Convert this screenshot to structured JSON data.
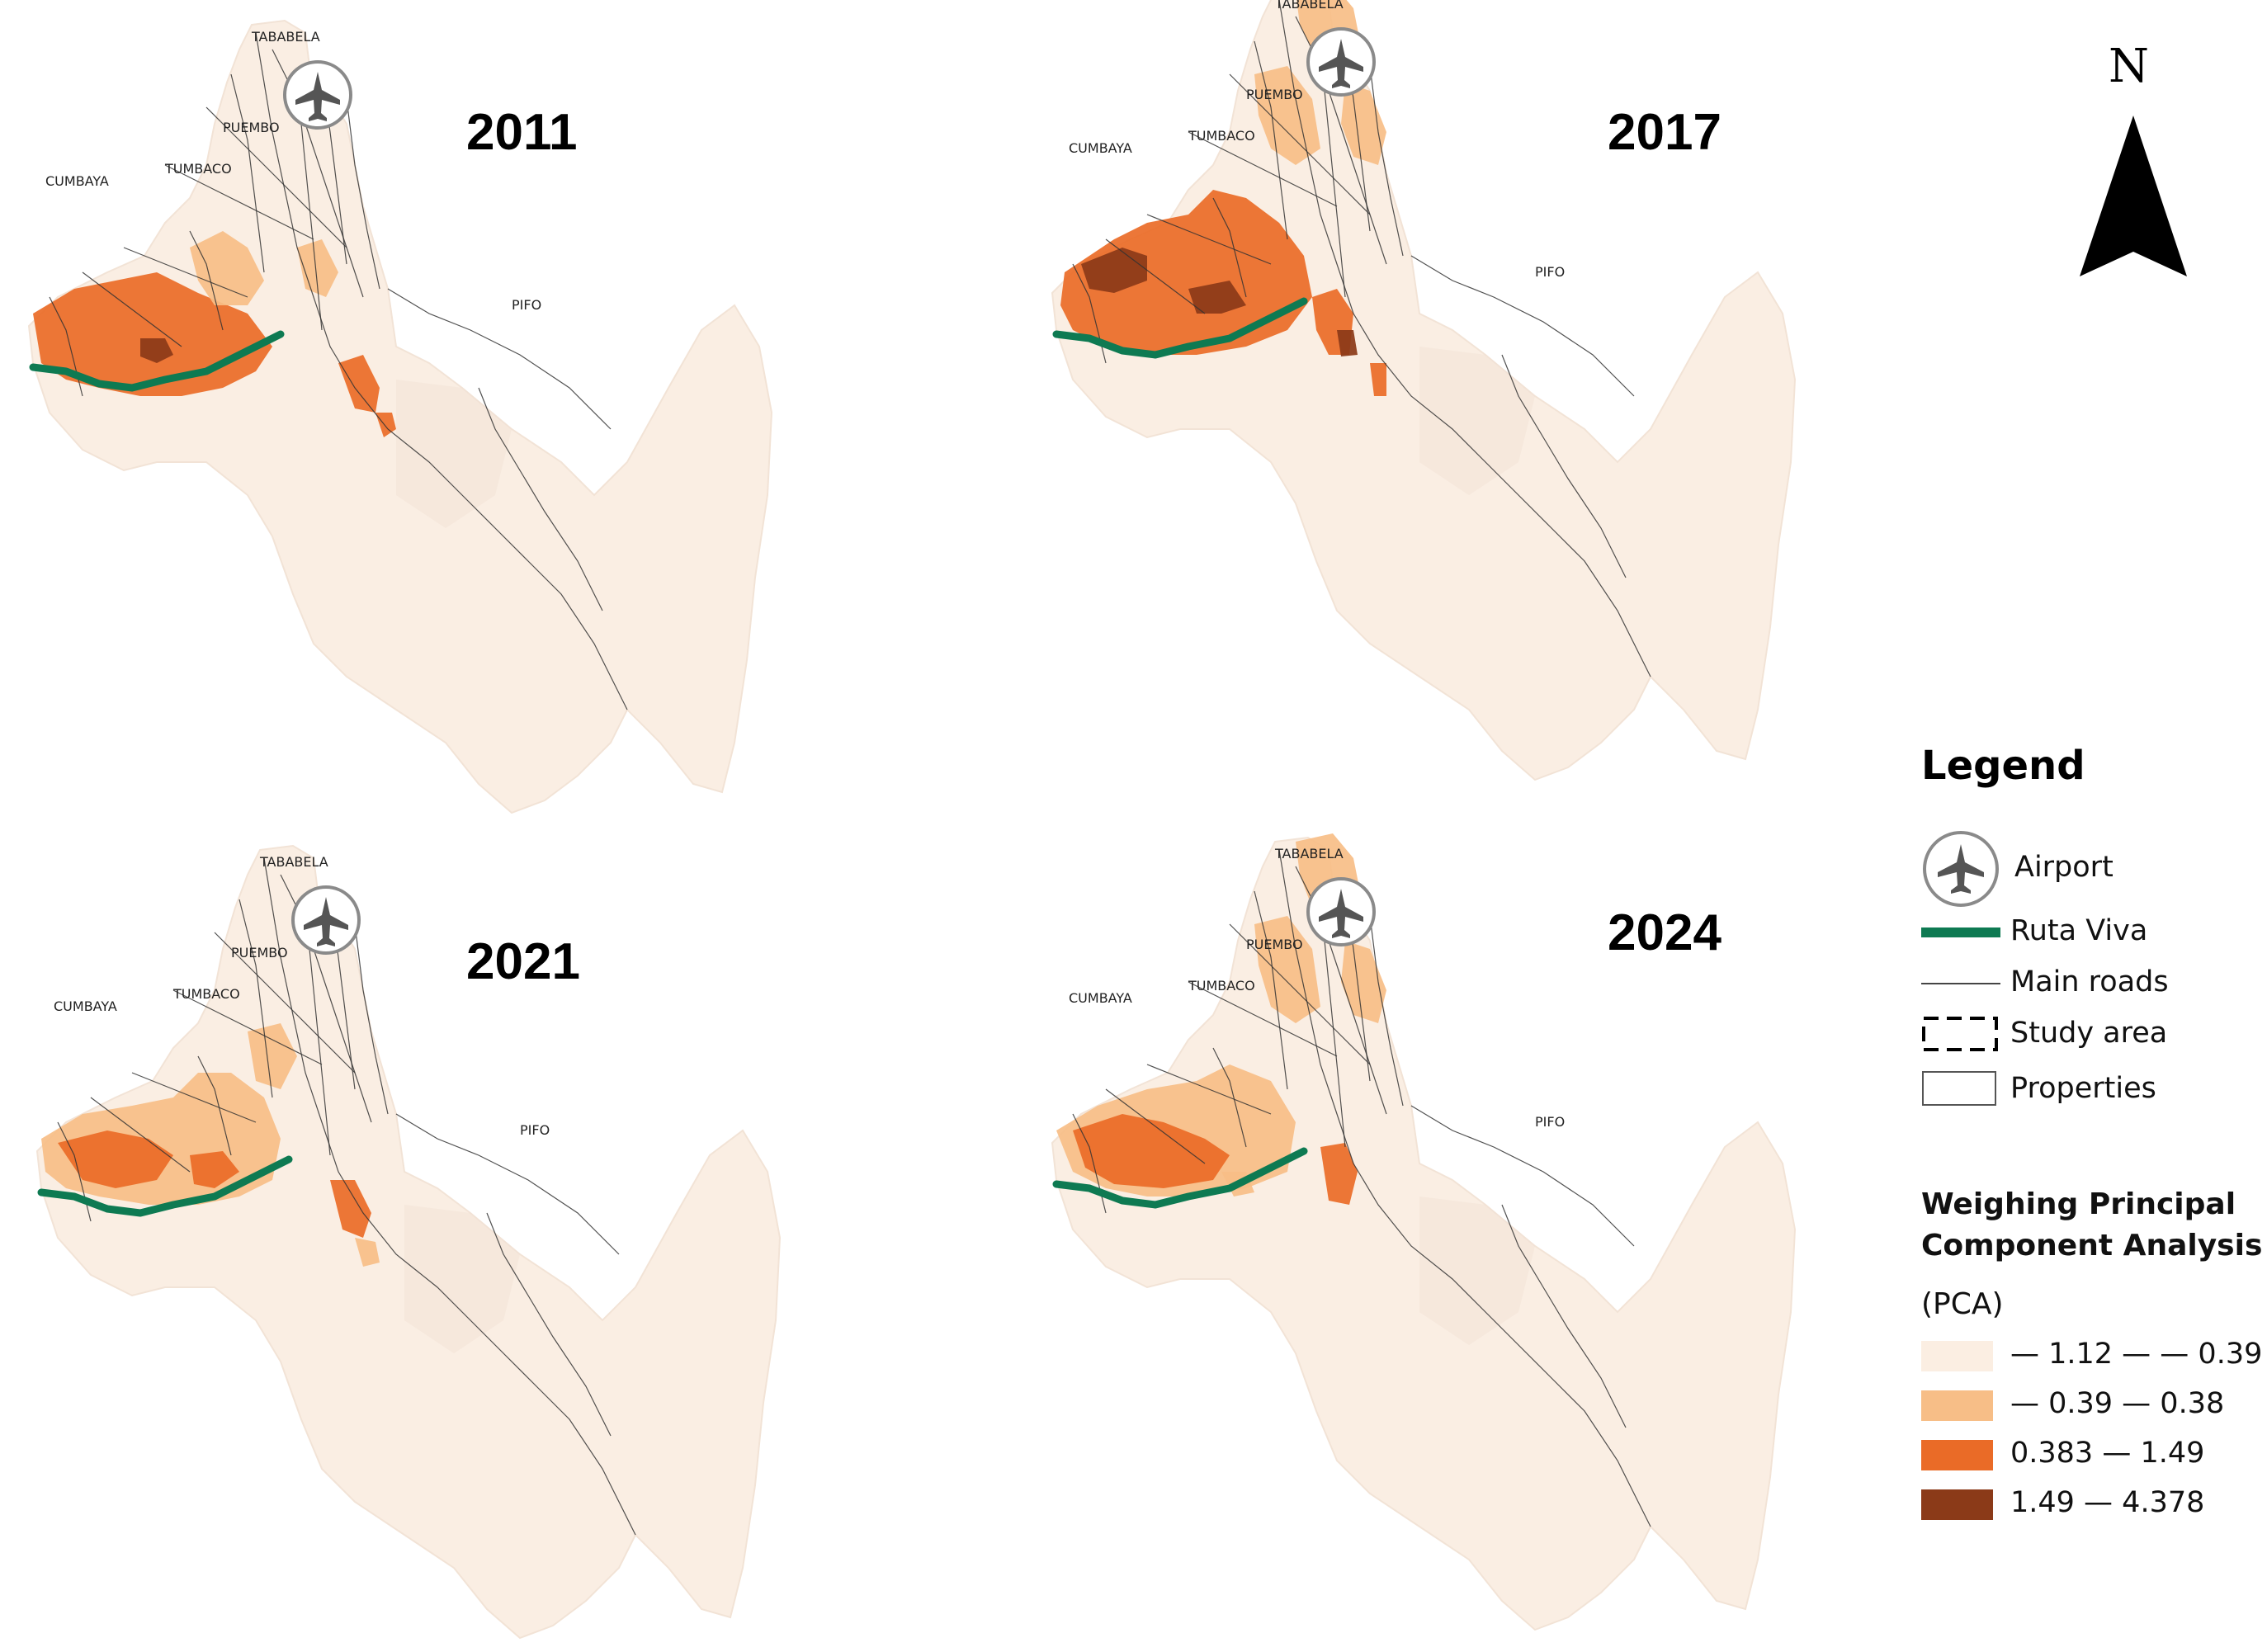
{
  "maps": [
    {
      "year": "2011",
      "labels": {
        "tababela": "TABABELA",
        "puembo": "PUEMBO",
        "tumbaco": "TUMBACO",
        "cumbaya": "CUMBAYA",
        "pifo": "PIFO"
      }
    },
    {
      "year": "2017",
      "labels": {
        "tababela": "TABABELA",
        "puembo": "PUEMBO",
        "tumbaco": "TUMBACO",
        "cumbaya": "CUMBAYA",
        "pifo": "PIFO"
      }
    },
    {
      "year": "2021",
      "labels": {
        "tababela": "TABABELA",
        "puembo": "PUEMBO",
        "tumbaco": "TUMBACO",
        "cumbaya": "CUMBAYA",
        "pifo": "PIFO"
      }
    },
    {
      "year": "2024",
      "labels": {
        "tababela": "TABABELA",
        "puembo": "PUEMBO",
        "tumbaco": "TUMBACO",
        "cumbaya": "CUMBAYA",
        "pifo": "PIFO"
      }
    }
  ],
  "north_arrow": {
    "label": "N"
  },
  "legend": {
    "title": "Legend",
    "items": [
      {
        "label": "Airport",
        "icon": "airplane-icon"
      },
      {
        "label": "Ruta Viva",
        "icon": "ruta-viva-line"
      },
      {
        "label": "Main roads",
        "icon": "road-line"
      },
      {
        "label": "Study area",
        "icon": "dashed-box"
      },
      {
        "label": "Properties",
        "icon": "outline-box"
      }
    ],
    "pca_title_1": "Weighing Principal",
    "pca_title_2": "Component Analysis",
    "pca_subtitle": "(PCA)",
    "classes": [
      {
        "label": "— 1.12 — — 0.39",
        "color": "#fbeee2"
      },
      {
        "label": "— 0.39 — 0.38",
        "color": "#f7be87"
      },
      {
        "label": "0.383 — 1.49",
        "color": "#ea6b27"
      },
      {
        "label": "1.49 — 4.378",
        "color": "#8b3a18"
      }
    ]
  },
  "colors": {
    "base": "#faeee3",
    "base_shade": "#f1e2d5",
    "class_low": "#fbeee2",
    "class_mid_low": "#f7be87",
    "class_mid_high": "#ea6b27",
    "class_high": "#8b3a18",
    "ruta_viva": "#0e7a52",
    "roads": "#333333"
  }
}
